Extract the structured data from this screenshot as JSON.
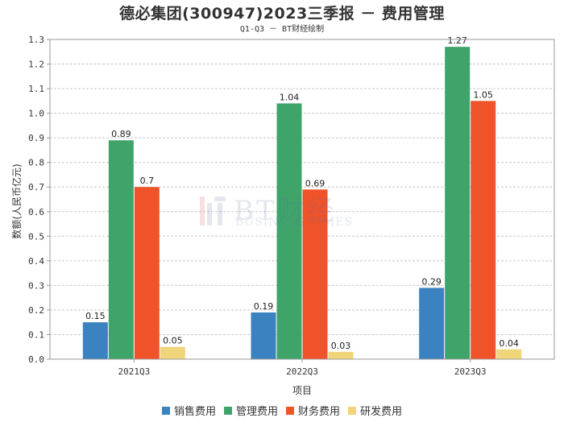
{
  "chart_data": {
    "type": "bar",
    "title": "德必集团(300947)2023三季报 － 费用管理",
    "subtitle": "Q1-Q3 － BT财经绘制",
    "xlabel": "项目",
    "ylabel": "数额(人民币亿元)",
    "ylim": [
      0,
      1.3
    ],
    "yticks": [
      "0.0",
      "0.1",
      "0.2",
      "0.3",
      "0.4",
      "0.5",
      "0.6",
      "0.7",
      "0.8",
      "0.9",
      "1.0",
      "1.1",
      "1.2",
      "1.3"
    ],
    "categories": [
      "2021Q3",
      "2022Q3",
      "2023Q3"
    ],
    "series": [
      {
        "name": "销售费用",
        "color": "#3a82c0",
        "values": [
          0.15,
          0.19,
          0.29
        ],
        "labels": [
          "0.15",
          "0.19",
          "0.29"
        ]
      },
      {
        "name": "管理费用",
        "color": "#3fa46a",
        "values": [
          0.89,
          1.04,
          1.27
        ],
        "labels": [
          "0.89",
          "1.04",
          "1.27"
        ]
      },
      {
        "name": "财务费用",
        "color": "#f0532a",
        "values": [
          0.7,
          0.69,
          1.05
        ],
        "labels": [
          "0.7",
          "0.69",
          "1.05"
        ]
      },
      {
        "name": "研发费用",
        "color": "#f0d57a",
        "values": [
          0.05,
          0.03,
          0.04
        ],
        "labels": [
          "0.05",
          "0.03",
          "0.04"
        ]
      }
    ],
    "grid": true,
    "legend": "bottom"
  },
  "watermark": {
    "main": "BT财经",
    "sub": "BUSINESS TIMES"
  }
}
